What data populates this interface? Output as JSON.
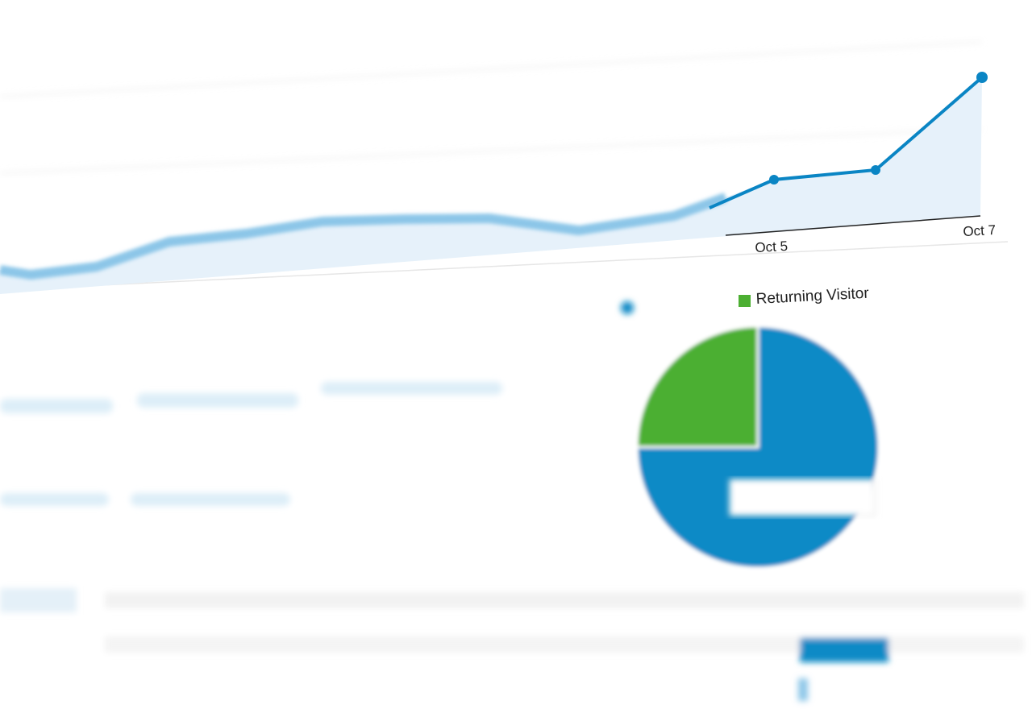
{
  "chart_axis_labels": [
    "Oct 5",
    "Oct 7"
  ],
  "pie": {
    "legend": "Returning Visitor",
    "legend_color": "#4caf32",
    "slices": [
      {
        "color": "#0a8ac6",
        "value": 75
      },
      {
        "color": "#4caf32",
        "value": 25
      }
    ]
  }
}
